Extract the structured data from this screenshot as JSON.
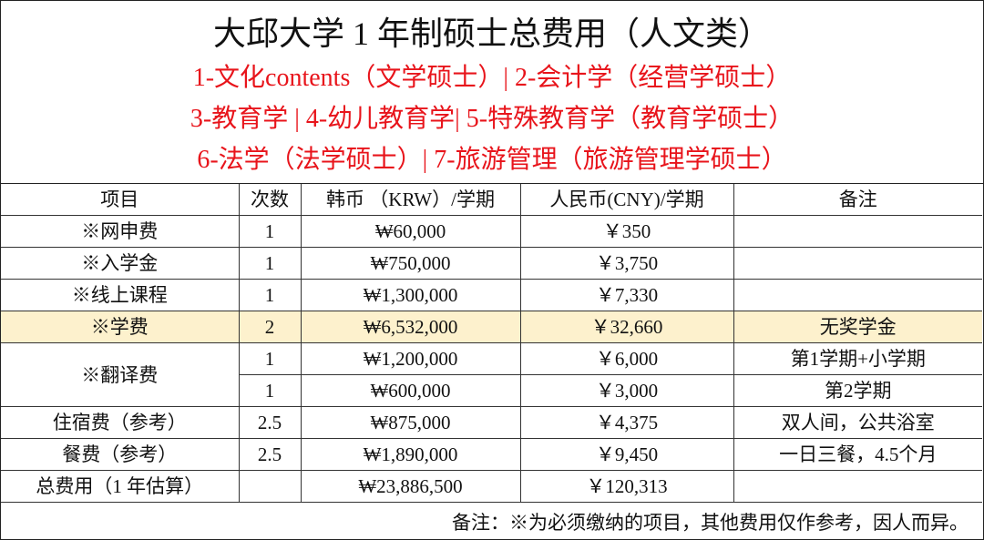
{
  "header": {
    "title": "大邱大学 1 年制硕士总费用（人文类）",
    "subtitles": [
      "1-文化contents（文学硕士）| 2-会计学（经营学硕士）",
      "3-教育学 | 4-幼儿教育学| 5-特殊教育学（教育学硕士）",
      "6-法学（法学硕士）| 7-旅游管理（旅游管理学硕士）"
    ]
  },
  "table": {
    "columns": [
      "项目",
      "次数",
      "韩币 （KRW）/学期",
      "人民币(CNY)/学期",
      "备注"
    ],
    "rows": [
      {
        "item": "※网申费",
        "count": "1",
        "krw": "₩60,000",
        "cny": "￥350"
      },
      {
        "item": "※入学金",
        "count": "1",
        "krw": "₩750,000",
        "cny": "￥3,750"
      },
      {
        "item": "※线上课程",
        "count": "1",
        "krw": "₩1,300,000",
        "cny": "￥7,330"
      },
      {
        "item": "※学费",
        "count": "2",
        "krw": "₩6,532,000",
        "cny": "￥32,660",
        "note": "无奖学金"
      },
      {
        "item": "※翻译费",
        "count": "1",
        "krw": "₩1,200,000",
        "cny": "￥6,000",
        "note": "第1学期+小学期"
      },
      {
        "count": "1",
        "krw": "₩600,000",
        "cny": "￥3,000",
        "note": "第2学期"
      },
      {
        "item": "住宿费（参考）",
        "count": "2.5",
        "krw": "₩875,000",
        "cny": "￥4,375",
        "note": "双人间，公共浴室"
      },
      {
        "item": "餐费（参考）",
        "count": "2.5",
        "krw": "₩1,890,000",
        "cny": "￥9,450",
        "note": "一日三餐，4.5个月"
      },
      {
        "item": "总费用（1 年估算）",
        "krw": "₩23,886,500",
        "cny": "￥120,313"
      }
    ],
    "footnote": "备注：※为必须缴纳的项目，其他费用仅作参考，因人而异。"
  }
}
